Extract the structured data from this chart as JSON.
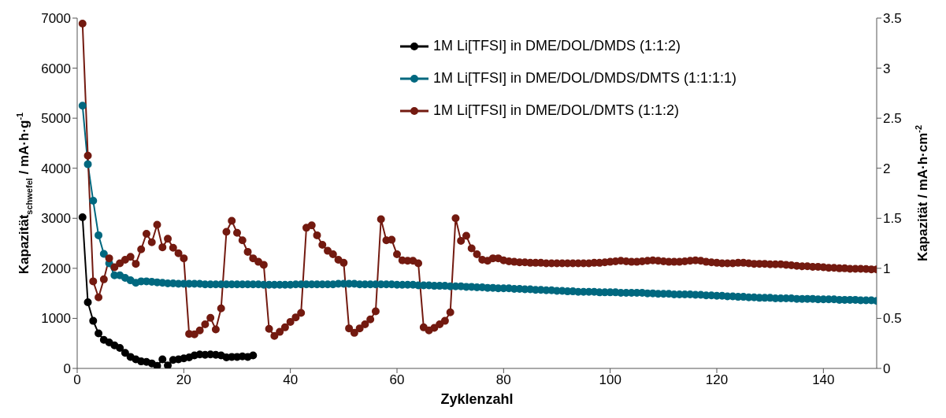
{
  "chart_data": {
    "type": "line",
    "xlabel": "Zyklenzahl",
    "ylabel": "Kapazität$_{schwefel}$ / mA·h·g$^{-1}$",
    "y2label": "Kapazität / mA·h·cm$^{-2}$",
    "x": [
      1,
      2,
      3,
      4,
      5,
      6,
      7,
      8,
      9,
      10,
      11,
      12,
      13,
      14,
      15,
      16,
      17,
      18,
      19,
      20,
      21,
      22,
      23,
      24,
      25,
      26,
      27,
      28,
      29,
      30,
      31,
      32,
      33,
      34,
      35,
      36,
      37,
      38,
      39,
      40,
      41,
      42,
      43,
      44,
      45,
      46,
      47,
      48,
      49,
      50,
      51,
      52,
      53,
      54,
      55,
      56,
      57,
      58,
      59,
      60,
      61,
      62,
      63,
      64,
      65,
      66,
      67,
      68,
      69,
      70,
      71,
      72,
      73,
      74,
      75,
      76,
      77,
      78,
      79,
      80,
      81,
      82,
      83,
      84,
      85,
      86,
      87,
      88,
      89,
      90,
      91,
      92,
      93,
      94,
      95,
      96,
      97,
      98,
      99,
      100,
      101,
      102,
      103,
      104,
      105,
      106,
      107,
      108,
      109,
      110,
      111,
      112,
      113,
      114,
      115,
      116,
      117,
      118,
      119,
      120,
      121,
      122,
      123,
      124,
      125,
      126,
      127,
      128,
      129,
      130,
      131,
      132,
      133,
      134,
      135,
      136,
      137,
      138,
      139,
      140,
      141,
      142,
      143,
      144,
      145,
      146,
      147,
      148,
      149,
      150
    ],
    "series": [
      {
        "name": "1M Li[TFSI] in DME/DOL/DMDS (1:1:2)",
        "color": "#000000",
        "x": [
          1,
          2,
          3,
          4,
          5,
          6,
          7,
          8,
          9,
          10,
          11,
          12,
          13,
          14,
          15,
          16,
          17,
          18,
          19,
          20,
          21,
          22,
          23,
          24,
          25,
          26,
          27,
          28,
          29,
          30,
          31,
          32,
          33
        ],
        "values": [
          3020,
          1320,
          950,
          700,
          570,
          520,
          460,
          410,
          310,
          230,
          180,
          140,
          130,
          100,
          50,
          180,
          60,
          170,
          180,
          200,
          220,
          260,
          280,
          270,
          280,
          270,
          260,
          220,
          230,
          230,
          240,
          230,
          260
        ]
      },
      {
        "name": "1M Li[TFSI] in DME/DOL/DMDS/DMTS (1:1:1:1)",
        "color": "#00687f",
        "values": [
          5250,
          4080,
          3350,
          2660,
          2290,
          2100,
          1860,
          1860,
          1810,
          1760,
          1710,
          1740,
          1740,
          1730,
          1720,
          1710,
          1700,
          1700,
          1690,
          1690,
          1690,
          1690,
          1690,
          1680,
          1680,
          1680,
          1680,
          1680,
          1680,
          1680,
          1680,
          1680,
          1680,
          1680,
          1670,
          1670,
          1670,
          1670,
          1670,
          1670,
          1680,
          1680,
          1680,
          1680,
          1680,
          1680,
          1680,
          1680,
          1690,
          1690,
          1690,
          1690,
          1680,
          1680,
          1680,
          1680,
          1680,
          1680,
          1680,
          1670,
          1670,
          1670,
          1670,
          1660,
          1660,
          1660,
          1650,
          1650,
          1650,
          1640,
          1640,
          1640,
          1630,
          1630,
          1620,
          1620,
          1610,
          1610,
          1600,
          1600,
          1600,
          1590,
          1590,
          1580,
          1580,
          1570,
          1570,
          1560,
          1560,
          1550,
          1550,
          1540,
          1540,
          1530,
          1530,
          1530,
          1530,
          1520,
          1520,
          1520,
          1520,
          1510,
          1510,
          1510,
          1510,
          1510,
          1500,
          1500,
          1490,
          1490,
          1490,
          1480,
          1480,
          1480,
          1480,
          1470,
          1470,
          1460,
          1460,
          1450,
          1450,
          1440,
          1440,
          1430,
          1430,
          1420,
          1420,
          1410,
          1410,
          1410,
          1400,
          1400,
          1400,
          1400,
          1390,
          1390,
          1390,
          1390,
          1380,
          1380,
          1380,
          1380,
          1370,
          1370,
          1370,
          1370,
          1360,
          1360,
          1360,
          1350
        ]
      },
      {
        "name": "1M Li[TFSI] in DME/DOL/DMTS (1:1:2)",
        "color": "#731a10",
        "values": [
          6890,
          4250,
          1740,
          1420,
          1780,
          2200,
          2020,
          2100,
          2170,
          2230,
          2090,
          2380,
          2690,
          2520,
          2870,
          2420,
          2590,
          2410,
          2300,
          2200,
          690,
          680,
          760,
          880,
          1010,
          780,
          1200,
          2730,
          2950,
          2710,
          2560,
          2330,
          2200,
          2130,
          2070,
          790,
          650,
          730,
          820,
          930,
          1020,
          1110,
          2810,
          2860,
          2660,
          2470,
          2350,
          2280,
          2170,
          2110,
          800,
          710,
          800,
          880,
          980,
          1140,
          2980,
          2560,
          2570,
          2280,
          2160,
          2150,
          2150,
          2100,
          820,
          760,
          810,
          880,
          950,
          1120,
          3000,
          2550,
          2650,
          2400,
          2280,
          2170,
          2150,
          2200,
          2200,
          2160,
          2140,
          2130,
          2120,
          2120,
          2110,
          2110,
          2110,
          2100,
          2100,
          2100,
          2100,
          2100,
          2100,
          2100,
          2100,
          2100,
          2110,
          2110,
          2120,
          2130,
          2140,
          2150,
          2140,
          2130,
          2130,
          2140,
          2150,
          2160,
          2150,
          2140,
          2130,
          2130,
          2130,
          2140,
          2150,
          2160,
          2150,
          2130,
          2120,
          2110,
          2100,
          2100,
          2100,
          2110,
          2110,
          2100,
          2090,
          2090,
          2090,
          2080,
          2080,
          2080,
          2070,
          2060,
          2050,
          2040,
          2040,
          2030,
          2030,
          2020,
          2010,
          2010,
          2000,
          2000,
          1990,
          1990,
          1990,
          1985,
          1980,
          1980
        ]
      }
    ],
    "xlim": [
      0,
      150
    ],
    "xticks": [
      0,
      20,
      40,
      60,
      80,
      100,
      120,
      140
    ],
    "ylim": [
      0,
      7000
    ],
    "yticks": [
      0,
      1000,
      2000,
      3000,
      4000,
      5000,
      6000,
      7000
    ],
    "y2lim": [
      0,
      3.5
    ],
    "y2ticks": [
      0,
      0.5,
      1,
      1.5,
      2,
      2.5,
      3,
      3.5
    ],
    "grid": false,
    "legend": "top",
    "marker": "circle",
    "line_style": "solid"
  }
}
